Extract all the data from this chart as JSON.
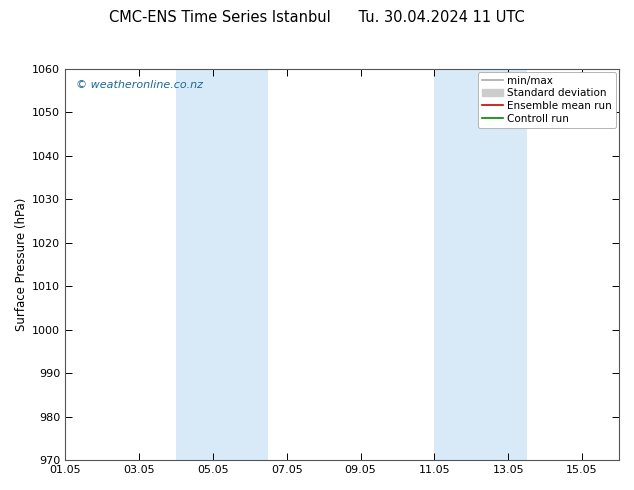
{
  "title": "CMC-ENS Time Series Istanbul",
  "title_right": "Tu. 30.04.2024 11 UTC",
  "ylabel": "Surface Pressure (hPa)",
  "ylim": [
    970,
    1060
  ],
  "yticks": [
    970,
    980,
    990,
    1000,
    1010,
    1020,
    1030,
    1040,
    1050,
    1060
  ],
  "xlim": [
    0,
    15
  ],
  "xtick_positions": [
    0,
    2,
    4,
    6,
    8,
    10,
    12,
    14
  ],
  "xtick_labels": [
    "01.05",
    "03.05",
    "05.05",
    "07.05",
    "09.05",
    "11.05",
    "13.05",
    "15.05"
  ],
  "shaded_bands": [
    {
      "start": 3.0,
      "end": 5.5,
      "color": "#d8eaf8"
    },
    {
      "start": 10.0,
      "end": 12.5,
      "color": "#d8eaf8"
    }
  ],
  "watermark": "© weatheronline.co.nz",
  "watermark_color": "#1a6699",
  "legend_entries": [
    {
      "label": "min/max",
      "color": "#aaaaaa",
      "lw": 1.2,
      "type": "line"
    },
    {
      "label": "Standard deviation",
      "color": "#cccccc",
      "lw": 5,
      "type": "bar"
    },
    {
      "label": "Ensemble mean run",
      "color": "#cc0000",
      "lw": 1.2,
      "type": "line"
    },
    {
      "label": "Controll run",
      "color": "#008800",
      "lw": 1.2,
      "type": "line"
    }
  ],
  "background_color": "#ffffff",
  "plot_bg_color": "#ffffff",
  "title_fontsize": 10.5,
  "ylabel_fontsize": 8.5,
  "tick_fontsize": 8,
  "watermark_fontsize": 8,
  "legend_fontsize": 7.5,
  "fig_width": 6.34,
  "fig_height": 4.9,
  "dpi": 100
}
